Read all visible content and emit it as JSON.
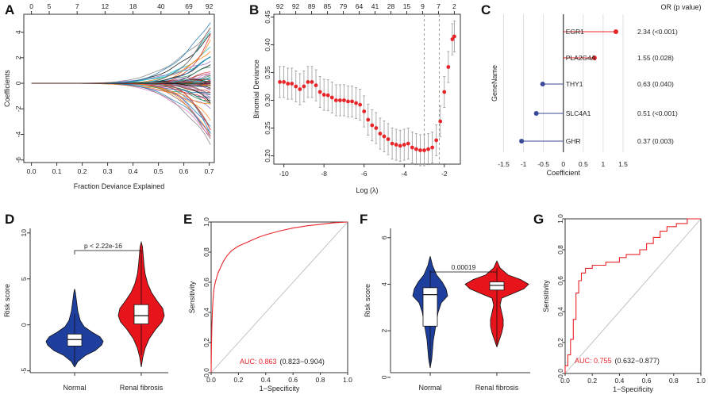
{
  "figure": {
    "panel_labels": [
      "A",
      "B",
      "C",
      "D",
      "E",
      "F",
      "G"
    ]
  },
  "chart_data": [
    {
      "panel": "A",
      "type": "line",
      "title": "",
      "xlabel": "Fraction Deviance Explained",
      "ylabel": "Coefficients",
      "xlim": [
        -0.03,
        0.72
      ],
      "ylim": [
        -6.2,
        5.4
      ],
      "xticks": [
        "0.0",
        "0.1",
        "0.2",
        "0.3",
        "0.4",
        "0.5",
        "0.6",
        "0.7"
      ],
      "yticks": [
        "-6",
        "-4",
        "-2",
        "0",
        "2",
        "4"
      ],
      "top_ticks": [
        "0",
        "5",
        "7",
        "12",
        "18",
        "40",
        "69",
        "92"
      ],
      "series_count": 92,
      "final_coefficient_range": [
        -5.5,
        5.0
      ],
      "colors": [
        "#2e8b57",
        "#d62728",
        "#1f77b4",
        "#e377c2",
        "#17becf",
        "#9467bd",
        "#000000",
        "#ff7f0e",
        "#8c564b",
        "#7f7f7f"
      ]
    },
    {
      "panel": "B",
      "type": "scatter",
      "title": "",
      "xlabel": "Log (λ)",
      "ylabel": "Binomial Deviance",
      "xlim": [
        -10.5,
        -1.2
      ],
      "ylim": [
        0.185,
        0.455
      ],
      "xticks": [
        "-10",
        "-8",
        "-6",
        "-4",
        "-2"
      ],
      "yticks": [
        "0.20",
        "0.25",
        "0.30",
        "0.35",
        "0.40",
        "0.45"
      ],
      "top_ticks": [
        "92",
        "92",
        "89",
        "85",
        "79",
        "64",
        "41",
        "28",
        "15",
        "9",
        "7",
        "2"
      ],
      "vlines": [
        -3.0,
        -2.25
      ],
      "x": [
        -10.2,
        -10.0,
        -9.8,
        -9.6,
        -9.4,
        -9.2,
        -9.0,
        -8.8,
        -8.6,
        -8.4,
        -8.2,
        -8.0,
        -7.8,
        -7.6,
        -7.4,
        -7.2,
        -7.0,
        -6.8,
        -6.6,
        -6.4,
        -6.2,
        -6.0,
        -5.8,
        -5.6,
        -5.4,
        -5.2,
        -5.0,
        -4.8,
        -4.6,
        -4.4,
        -4.2,
        -4.0,
        -3.8,
        -3.6,
        -3.4,
        -3.2,
        -3.0,
        -2.8,
        -2.6,
        -2.4,
        -2.2,
        -2.0,
        -1.8,
        -1.6,
        -1.5
      ],
      "y": [
        0.333,
        0.333,
        0.33,
        0.33,
        0.325,
        0.32,
        0.325,
        0.333,
        0.333,
        0.327,
        0.315,
        0.31,
        0.309,
        0.305,
        0.3,
        0.3,
        0.3,
        0.298,
        0.298,
        0.295,
        0.292,
        0.28,
        0.265,
        0.255,
        0.25,
        0.24,
        0.235,
        0.23,
        0.222,
        0.22,
        0.218,
        0.22,
        0.222,
        0.215,
        0.212,
        0.21,
        0.21,
        0.212,
        0.215,
        0.228,
        0.262,
        0.315,
        0.36,
        0.41,
        0.415
      ],
      "error": 0.028,
      "point_color": "#e8262a"
    },
    {
      "panel": "C",
      "type": "forest",
      "title": "",
      "xlabel": "Coefficient",
      "ylabel": "GeneName",
      "xlim": [
        -1.75,
        1.6
      ],
      "xticks": [
        "-1.5",
        "-1",
        "-0.5",
        "0",
        "0.5",
        "1",
        "1.5"
      ],
      "header": "OR (p value)",
      "genes": [
        "EGR1",
        "PLA2G4A",
        "THY1",
        "SLC4A1",
        "GHR"
      ],
      "coefficients": [
        1.32,
        0.78,
        -0.52,
        -0.68,
        -1.05
      ],
      "or_labels": [
        "2.34 (<0.001)",
        "1.55 (0.028)",
        "0.63 (0.040)",
        "0.51 (<0.001)",
        "0.37 (0.003)"
      ],
      "positive_color": "#e8262a",
      "negative_color": "#3a4a9a"
    },
    {
      "panel": "D",
      "type": "violin",
      "title": "",
      "xlabel": "",
      "ylabel": "Risk score",
      "ylim": [
        -5.2,
        10.5
      ],
      "yticks": [
        "-5",
        "0",
        "5",
        "10"
      ],
      "categories": [
        "Normal",
        "Renal fibrosis"
      ],
      "colors": [
        "#1f3f9f",
        "#e8141c"
      ],
      "box_q1": [
        -2.3,
        0.1
      ],
      "box_median": [
        -1.6,
        1.0
      ],
      "box_q3": [
        -1.0,
        2.2
      ],
      "whisker_low": [
        -4.3,
        -3.3
      ],
      "whisker_high": [
        1.2,
        7.6
      ],
      "annotation": "p < 2.22e-16"
    },
    {
      "panel": "E",
      "type": "line",
      "title": "",
      "xlabel": "1−Specificity",
      "ylabel": "Sensitivity",
      "xlim": [
        0,
        1
      ],
      "ylim": [
        0,
        1
      ],
      "xticks": [
        "0.0",
        "0.2",
        "0.4",
        "0.6",
        "0.8",
        "1.0"
      ],
      "yticks": [
        "0.0",
        "0.2",
        "0.4",
        "0.6",
        "0.8",
        "1.0"
      ],
      "fpr": [
        0,
        0.002,
        0.005,
        0.01,
        0.015,
        0.02,
        0.03,
        0.04,
        0.05,
        0.07,
        0.09,
        0.12,
        0.15,
        0.2,
        0.25,
        0.3,
        0.35,
        0.4,
        0.5,
        0.6,
        0.7,
        0.8,
        0.9,
        1.0
      ],
      "tpr": [
        0,
        0.15,
        0.3,
        0.42,
        0.5,
        0.55,
        0.6,
        0.63,
        0.66,
        0.7,
        0.74,
        0.78,
        0.81,
        0.84,
        0.86,
        0.88,
        0.9,
        0.915,
        0.94,
        0.96,
        0.975,
        0.985,
        0.995,
        1.0
      ],
      "auc_label": "AUC: 0.863",
      "ci_label": "(0.823−0.904)",
      "curve_color": "#e8262a"
    },
    {
      "panel": "F",
      "type": "violin",
      "title": "",
      "xlabel": "",
      "ylabel": "Risk score",
      "ylim": [
        0.2,
        6.4
      ],
      "yticks": [
        "0",
        "2",
        "4",
        "6"
      ],
      "categories": [
        "Normal",
        "Renal fibrosis"
      ],
      "colors": [
        "#1f3f9f",
        "#e8141c"
      ],
      "box_q1": [
        2.2,
        3.75
      ],
      "box_median": [
        3.55,
        3.95
      ],
      "box_q3": [
        3.85,
        4.1
      ],
      "whisker_low": [
        0.6,
        1.4
      ],
      "whisker_high": [
        4.6,
        4.7
      ],
      "annotation": "0.00019"
    },
    {
      "panel": "G",
      "type": "line",
      "title": "",
      "xlabel": "1−Specificity",
      "ylabel": "Sensitivity",
      "xlim": [
        0,
        1
      ],
      "ylim": [
        0,
        1
      ],
      "xticks": [
        "0.0",
        "0.2",
        "0.4",
        "0.6",
        "0.8",
        "1.0"
      ],
      "yticks": [
        "0.0",
        "0.2",
        "0.4",
        "0.6",
        "0.8",
        "1.0"
      ],
      "fpr": [
        0,
        0,
        0.02,
        0.02,
        0.04,
        0.04,
        0.06,
        0.06,
        0.08,
        0.08,
        0.1,
        0.1,
        0.12,
        0.12,
        0.15,
        0.15,
        0.2,
        0.2,
        0.3,
        0.3,
        0.4,
        0.4,
        0.45,
        0.45,
        0.55,
        0.55,
        0.6,
        0.6,
        0.65,
        0.65,
        0.7,
        0.7,
        0.75,
        0.75,
        0.82,
        0.82,
        0.9,
        0.9,
        1.0
      ],
      "tpr": [
        0,
        0.05,
        0.05,
        0.12,
        0.12,
        0.22,
        0.22,
        0.35,
        0.35,
        0.52,
        0.52,
        0.6,
        0.6,
        0.65,
        0.65,
        0.68,
        0.68,
        0.7,
        0.7,
        0.72,
        0.72,
        0.75,
        0.75,
        0.77,
        0.77,
        0.8,
        0.8,
        0.84,
        0.84,
        0.88,
        0.88,
        0.92,
        0.92,
        0.95,
        0.95,
        0.97,
        0.97,
        1.0,
        1.0
      ],
      "auc_label": "AUC: 0.755",
      "ci_label": "(0.632−0.877)",
      "curve_color": "#e8262a"
    }
  ]
}
